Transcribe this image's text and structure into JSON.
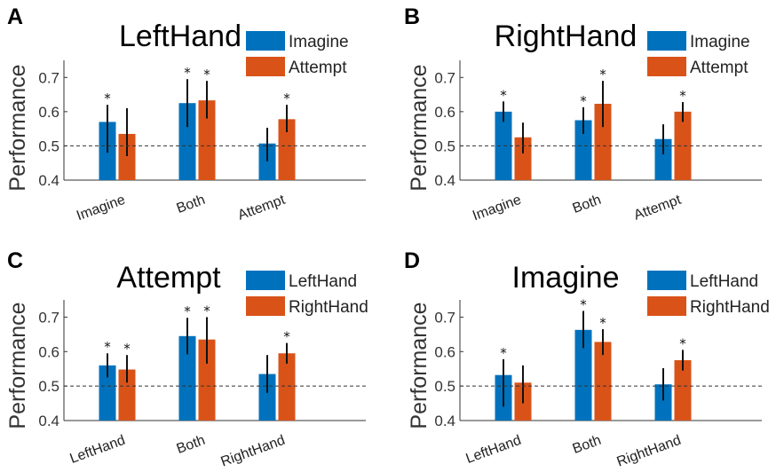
{
  "chart_data": [
    {
      "type": "bar",
      "panel": "A",
      "title": "LeftHand",
      "ylabel": "Performance",
      "categories": [
        "Imagine",
        "Both",
        "Attempt"
      ],
      "ylim": [
        0.4,
        0.75
      ],
      "yticks": [
        "0.4",
        "0.5",
        "0.6",
        "0.7"
      ],
      "reference_line": 0.5,
      "series": [
        {
          "name": "Imagine",
          "color": "#0072BD",
          "values": [
            0.57,
            0.625,
            0.507
          ],
          "err_low": [
            0.48,
            0.555,
            0.455
          ],
          "err_high": [
            0.62,
            0.695,
            0.553
          ],
          "significant": [
            true,
            true,
            false
          ]
        },
        {
          "name": "Attempt",
          "color": "#D95319",
          "values": [
            0.535,
            0.633,
            0.578
          ],
          "err_low": [
            0.47,
            0.58,
            0.54
          ],
          "err_high": [
            0.61,
            0.69,
            0.62
          ],
          "significant": [
            false,
            true,
            true
          ]
        }
      ],
      "significance_marker": "*"
    },
    {
      "type": "bar",
      "panel": "B",
      "title": "RightHand",
      "ylabel": "Performance",
      "categories": [
        "Imagine",
        "Both",
        "Attempt"
      ],
      "ylim": [
        0.4,
        0.75
      ],
      "yticks": [
        "0.4",
        "0.5",
        "0.6",
        "0.7"
      ],
      "reference_line": 0.5,
      "series": [
        {
          "name": "Imagine",
          "color": "#0072BD",
          "values": [
            0.6,
            0.575,
            0.52
          ],
          "err_low": [
            0.57,
            0.535,
            0.475
          ],
          "err_high": [
            0.63,
            0.613,
            0.563
          ],
          "significant": [
            true,
            true,
            false
          ]
        },
        {
          "name": "Attempt",
          "color": "#D95319",
          "values": [
            0.525,
            0.623,
            0.6
          ],
          "err_low": [
            0.478,
            0.555,
            0.57
          ],
          "err_high": [
            0.568,
            0.69,
            0.628
          ],
          "significant": [
            false,
            true,
            true
          ]
        }
      ],
      "significance_marker": "*"
    },
    {
      "type": "bar",
      "panel": "C",
      "title": "Attempt",
      "ylabel": "Performance",
      "categories": [
        "LeftHand",
        "Both",
        "RightHand"
      ],
      "ylim": [
        0.4,
        0.75
      ],
      "yticks": [
        "0.4",
        "0.5",
        "0.6",
        "0.7"
      ],
      "reference_line": 0.5,
      "series": [
        {
          "name": "LeftHand",
          "color": "#0072BD",
          "values": [
            0.56,
            0.645,
            0.535
          ],
          "err_low": [
            0.525,
            0.592,
            0.48
          ],
          "err_high": [
            0.595,
            0.698,
            0.59
          ],
          "significant": [
            true,
            true,
            false
          ]
        },
        {
          "name": "RightHand",
          "color": "#D95319",
          "values": [
            0.548,
            0.635,
            0.595
          ],
          "err_low": [
            0.51,
            0.565,
            0.565
          ],
          "err_high": [
            0.59,
            0.7,
            0.625
          ],
          "significant": [
            true,
            true,
            true
          ]
        }
      ],
      "significance_marker": "*"
    },
    {
      "type": "bar",
      "panel": "D",
      "title": "Imagine",
      "ylabel": "Performance",
      "categories": [
        "LeftHand",
        "Both",
        "RightHand"
      ],
      "ylim": [
        0.4,
        0.75
      ],
      "yticks": [
        "0.4",
        "0.5",
        "0.6",
        "0.7"
      ],
      "reference_line": 0.5,
      "series": [
        {
          "name": "LeftHand",
          "color": "#0072BD",
          "values": [
            0.532,
            0.663,
            0.505
          ],
          "err_low": [
            0.44,
            0.61,
            0.458
          ],
          "err_high": [
            0.578,
            0.718,
            0.552
          ],
          "significant": [
            true,
            true,
            false
          ]
        },
        {
          "name": "RightHand",
          "color": "#D95319",
          "values": [
            0.51,
            0.628,
            0.575
          ],
          "err_low": [
            0.45,
            0.59,
            0.545
          ],
          "err_high": [
            0.56,
            0.665,
            0.605
          ],
          "significant": [
            false,
            true,
            true
          ]
        }
      ],
      "significance_marker": "*"
    }
  ]
}
